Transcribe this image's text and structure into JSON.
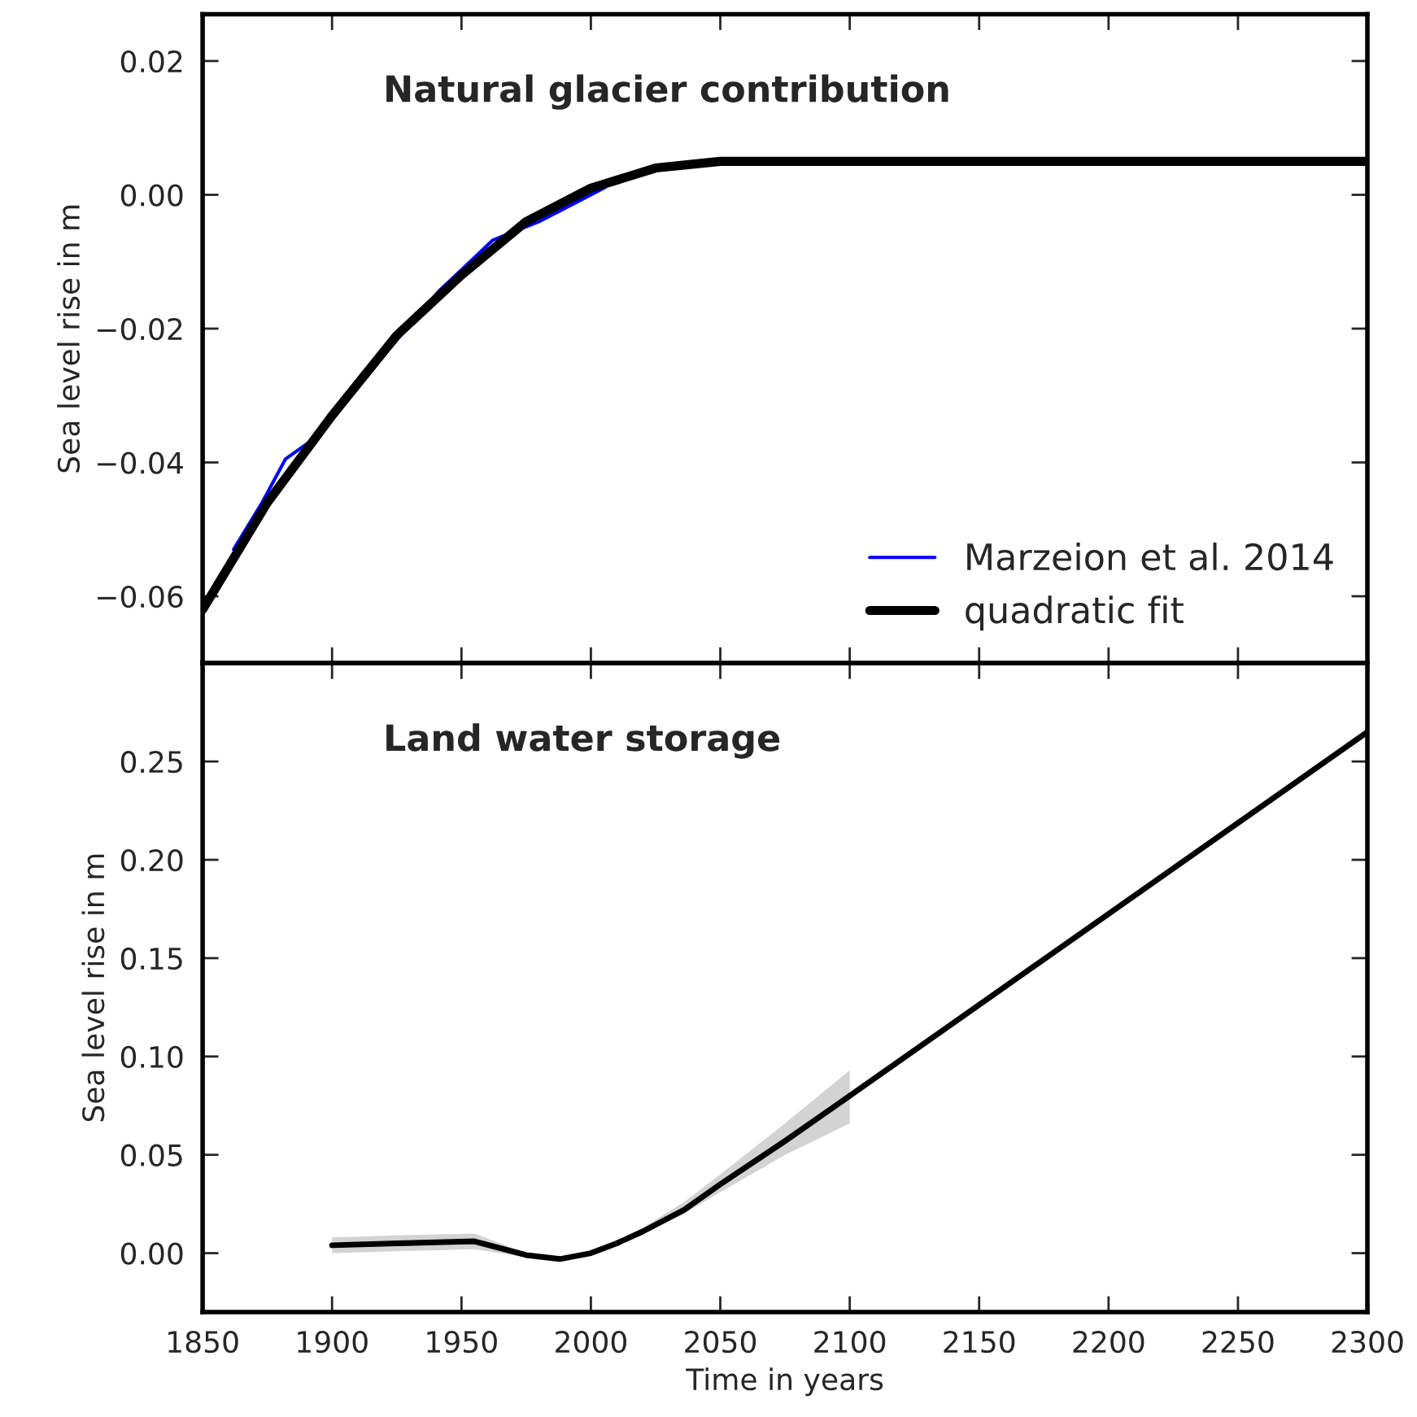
{
  "chart_data": [
    {
      "type": "line",
      "title": "Natural glacier contribution",
      "ylabel": "Sea level rise in m",
      "xlim": [
        1850,
        2300
      ],
      "xticks": [
        1850,
        1900,
        1950,
        2000,
        2050,
        2100,
        2150,
        2200,
        2250,
        2300
      ],
      "ylim": [
        -0.07,
        0.027
      ],
      "yticks": [
        {
          "value": -0.06,
          "label": "−0.06"
        },
        {
          "value": -0.04,
          "label": "−0.04"
        },
        {
          "value": -0.02,
          "label": "−0.02"
        },
        {
          "value": 0.0,
          "label": "0.00"
        },
        {
          "value": 0.02,
          "label": "0.02"
        }
      ],
      "tick_labels": "y",
      "grid": false,
      "legend": "bottom right",
      "series": [
        {
          "name": "Marzeion et al. 2014",
          "color": "#0000ff",
          "x": [
            1862,
            1873,
            1882,
            1891,
            1941,
            1952,
            1962,
            1980,
            1994,
            2005,
            2012
          ],
          "values": [
            -0.053,
            -0.046,
            -0.0395,
            -0.037,
            -0.0145,
            -0.0105,
            -0.0068,
            -0.004,
            -0.0012,
            0.001,
            0.0029
          ]
        },
        {
          "name": "quadratic fit",
          "color": "#000000",
          "x": [
            1850,
            1875,
            1900,
            1925,
            1950,
            1975,
            2000,
            2025,
            2050,
            2100,
            2150,
            2200,
            2250,
            2300
          ],
          "values": [
            -0.062,
            -0.046,
            -0.033,
            -0.021,
            -0.012,
            -0.004,
            0.001,
            0.004,
            0.005,
            0.005,
            0.005,
            0.005,
            0.005,
            0.005
          ]
        }
      ]
    },
    {
      "type": "line",
      "title": "Land water storage",
      "xlabel": "Time in years",
      "ylabel": "Sea level rise in m",
      "xlim": [
        1850,
        2300
      ],
      "xticks": [
        1850,
        1900,
        1950,
        2000,
        2050,
        2100,
        2150,
        2200,
        2250,
        2300
      ],
      "ylim": [
        -0.03,
        0.3
      ],
      "yticks": [
        {
          "value": 0.0,
          "label": "0.00"
        },
        {
          "value": 0.05,
          "label": "0.05"
        },
        {
          "value": 0.1,
          "label": "0.10"
        },
        {
          "value": 0.15,
          "label": "0.15"
        },
        {
          "value": 0.2,
          "label": "0.20"
        },
        {
          "value": 0.25,
          "label": "0.25"
        }
      ],
      "grid": false,
      "series": [
        {
          "color": "#000000",
          "x": [
            1900,
            1925,
            1955,
            1975,
            1988,
            2000,
            2010,
            2020,
            2036,
            2050,
            2075,
            2100,
            2300
          ],
          "values": [
            0.004,
            0.005,
            0.006,
            -0.001,
            -0.003,
            0.0,
            0.005,
            0.011,
            0.022,
            0.035,
            0.057,
            0.08,
            0.265
          ],
          "lower": [
            0.0,
            0.001,
            0.002,
            -0.002,
            -0.004,
            -0.001,
            0.004,
            0.01,
            0.02,
            0.031,
            0.05,
            0.066,
            null
          ],
          "upper": [
            0.008,
            0.009,
            0.01,
            0.0,
            -0.002,
            0.001,
            0.006,
            0.013,
            0.026,
            0.04,
            0.066,
            0.093,
            null
          ]
        }
      ]
    }
  ]
}
